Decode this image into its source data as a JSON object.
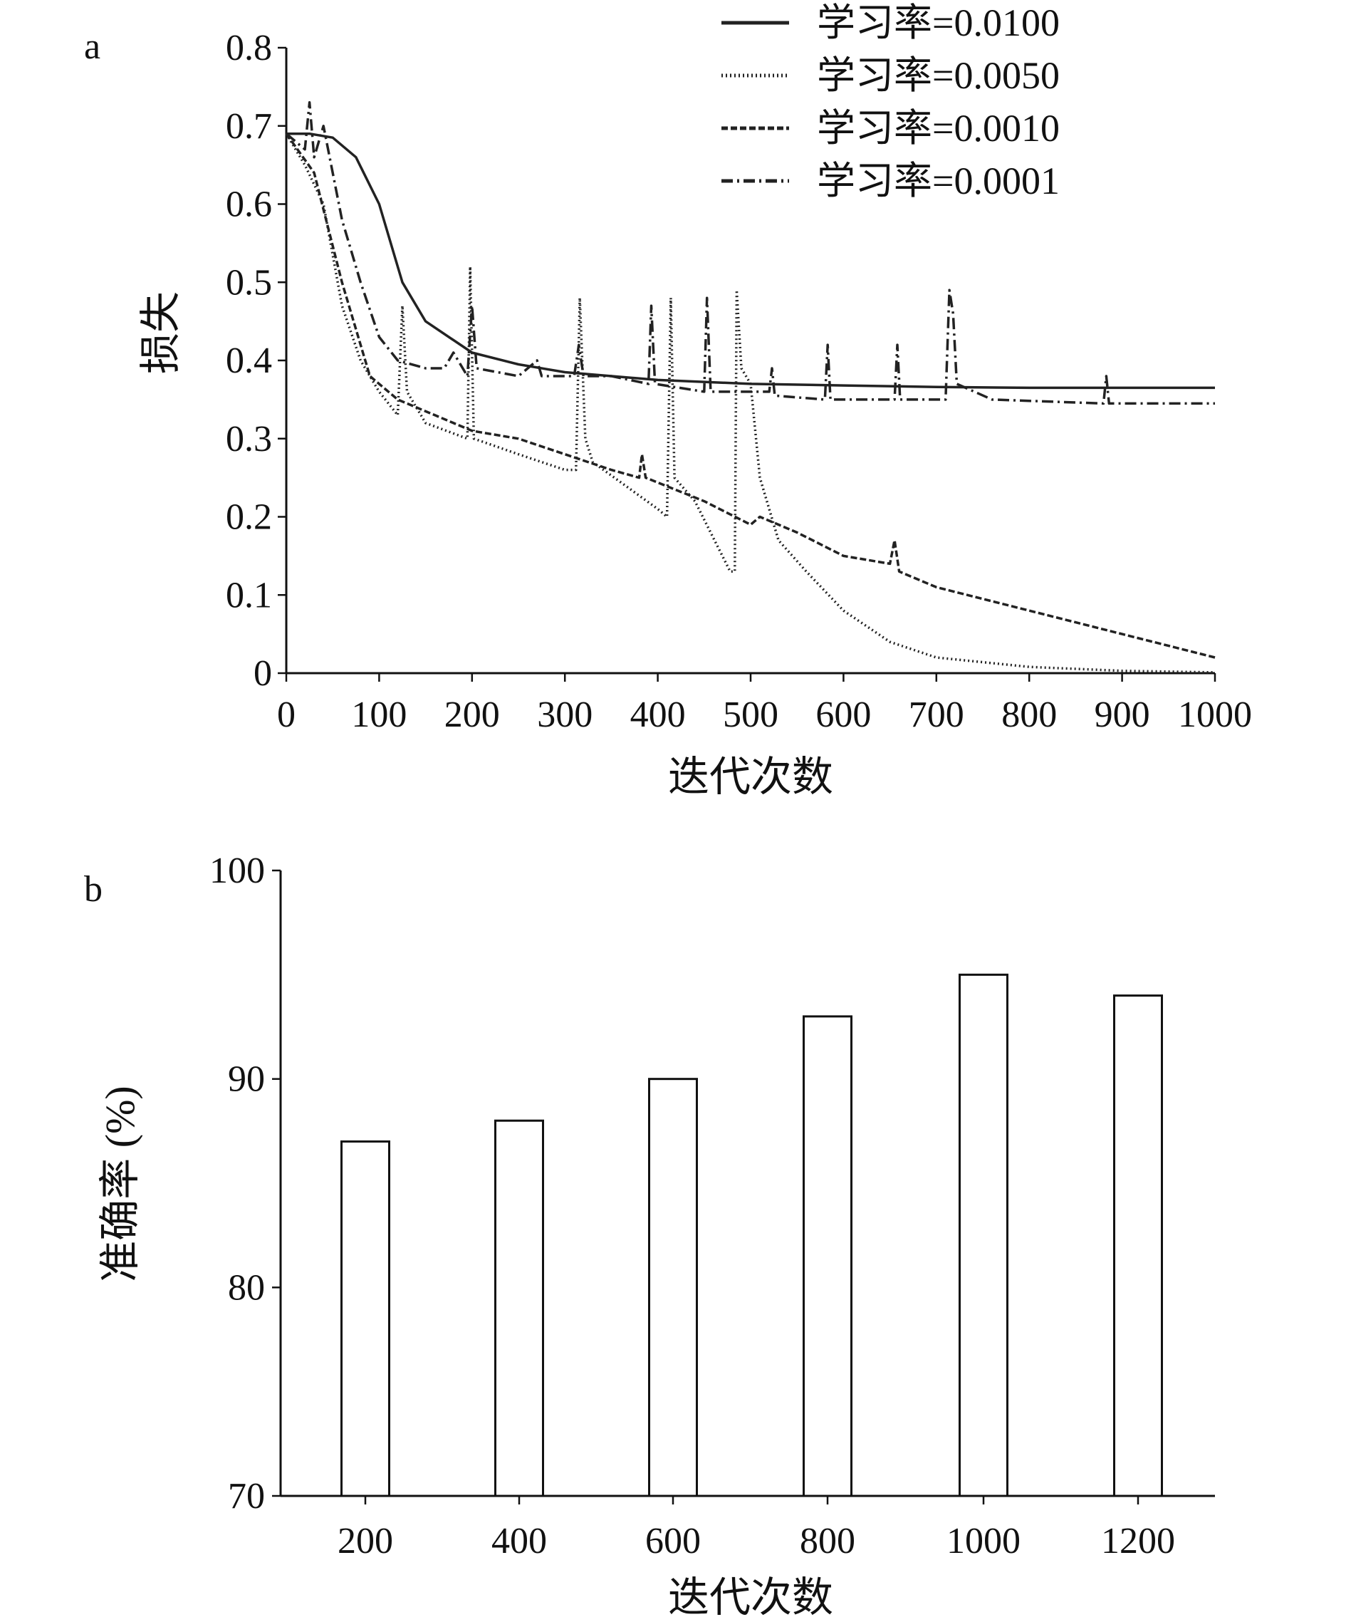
{
  "chart_data": [
    {
      "type": "line",
      "panel_label": "a",
      "title": "",
      "xlabel": "迭代次数",
      "ylabel": "损失",
      "xlim": [
        0,
        1000
      ],
      "ylim": [
        0,
        0.8
      ],
      "xticks": [
        0,
        100,
        200,
        300,
        400,
        500,
        600,
        700,
        800,
        900,
        1000
      ],
      "yticks": [
        0,
        0.1,
        0.2,
        0.3,
        0.4,
        0.5,
        0.6,
        0.7,
        0.8
      ],
      "ytick_labels": [
        "0",
        "0.1",
        "0.2",
        "0.3",
        "0.4",
        "0.5",
        "0.6",
        "0.7",
        "0.8"
      ],
      "grid": false,
      "legend_position": "top-right",
      "series": [
        {
          "name": "学习率=0.0100",
          "style": "solid",
          "x": [
            0,
            25,
            50,
            75,
            100,
            125,
            150,
            200,
            250,
            300,
            400,
            500,
            600,
            700,
            800,
            900,
            1000
          ],
          "y": [
            0.69,
            0.69,
            0.685,
            0.66,
            0.6,
            0.5,
            0.45,
            0.41,
            0.395,
            0.385,
            0.375,
            0.37,
            0.368,
            0.366,
            0.365,
            0.365,
            0.365
          ]
        },
        {
          "name": "学习率=0.0050",
          "style": "dotted",
          "x": [
            0,
            20,
            40,
            60,
            80,
            100,
            120,
            125,
            130,
            150,
            195,
            198,
            202,
            250,
            300,
            312,
            316,
            322,
            330,
            400,
            410,
            414,
            418,
            440,
            478,
            483,
            485,
            490,
            500,
            510,
            530,
            560,
            600,
            650,
            700,
            800,
            900,
            1000
          ],
          "y": [
            0.69,
            0.65,
            0.6,
            0.47,
            0.4,
            0.36,
            0.33,
            0.47,
            0.36,
            0.32,
            0.3,
            0.52,
            0.3,
            0.28,
            0.26,
            0.26,
            0.48,
            0.3,
            0.27,
            0.21,
            0.2,
            0.48,
            0.25,
            0.22,
            0.13,
            0.13,
            0.49,
            0.39,
            0.37,
            0.25,
            0.17,
            0.13,
            0.08,
            0.04,
            0.02,
            0.008,
            0.003,
            0.001
          ]
        },
        {
          "name": "学习率=0.0010",
          "style": "dashed",
          "x": [
            0,
            30,
            60,
            90,
            120,
            140,
            160,
            200,
            250,
            300,
            350,
            380,
            383,
            387,
            450,
            500,
            510,
            550,
            600,
            650,
            655,
            660,
            700,
            800,
            900,
            1000
          ],
          "y": [
            0.69,
            0.64,
            0.5,
            0.38,
            0.35,
            0.34,
            0.33,
            0.31,
            0.3,
            0.28,
            0.26,
            0.25,
            0.28,
            0.25,
            0.22,
            0.19,
            0.2,
            0.18,
            0.15,
            0.14,
            0.17,
            0.13,
            0.11,
            0.08,
            0.05,
            0.02
          ]
        },
        {
          "name": "学习率=0.0001",
          "style": "dashdot",
          "x": [
            0,
            20,
            25,
            30,
            40,
            60,
            80,
            100,
            120,
            150,
            170,
            180,
            195,
            200,
            205,
            250,
            270,
            275,
            310,
            315,
            320,
            350,
            390,
            393,
            397,
            450,
            453,
            457,
            500,
            520,
            523,
            526,
            580,
            583,
            586,
            655,
            658,
            661,
            710,
            714,
            718,
            722,
            760,
            880,
            883,
            886,
            1000
          ],
          "y": [
            0.69,
            0.67,
            0.73,
            0.66,
            0.7,
            0.58,
            0.5,
            0.43,
            0.4,
            0.39,
            0.39,
            0.41,
            0.38,
            0.47,
            0.39,
            0.38,
            0.4,
            0.38,
            0.38,
            0.42,
            0.38,
            0.38,
            0.37,
            0.47,
            0.37,
            0.36,
            0.48,
            0.36,
            0.36,
            0.36,
            0.39,
            0.355,
            0.35,
            0.42,
            0.35,
            0.35,
            0.42,
            0.35,
            0.35,
            0.49,
            0.46,
            0.37,
            0.35,
            0.345,
            0.38,
            0.345,
            0.345
          ]
        }
      ]
    },
    {
      "type": "bar",
      "panel_label": "b",
      "title": "",
      "xlabel": "迭代次数",
      "ylabel": "准确率 (%)",
      "categories": [
        "200",
        "400",
        "600",
        "800",
        "1000",
        "1200"
      ],
      "values": [
        87,
        88,
        90,
        93,
        95,
        94
      ],
      "ylim": [
        70,
        100
      ],
      "yticks": [
        70,
        80,
        90,
        100
      ],
      "grid": false
    }
  ]
}
